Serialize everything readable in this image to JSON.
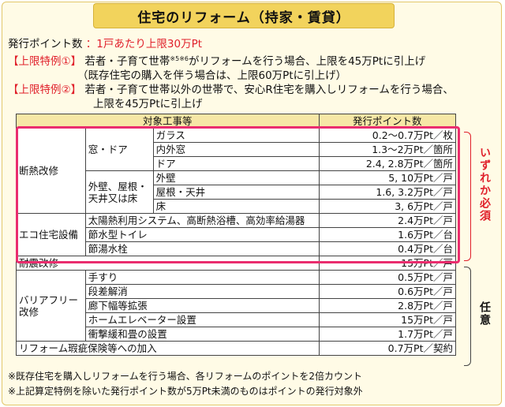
{
  "title": "住宅のリフォーム（持家・賃貸）",
  "points_label": "発行ポイント数",
  "points_value": "：1戸あたり上限30万Pt",
  "special1": {
    "tag": "【上限特例①】",
    "text_a": "若者・子育て世帯",
    "sup": "※5※6",
    "text_b": "がリフォームを行う場合、上限を45万Ptに引上げ",
    "line2": "（既存住宅の購入を伴う場合は、上限60万Ptに引上げ）"
  },
  "special2": {
    "tag": "【上限特例②】",
    "text": "若者・子育て世帯以外の世帯で、安心R住宅を購入しリフォームを行う場合、",
    "line2": "上限を45万Ptに引上げ"
  },
  "table": {
    "header_work": "対象工事等",
    "header_points": "発行ポイント数",
    "insulation": "断熱改修",
    "window_door": "窓・ドア",
    "glass": "ガラス",
    "glass_pt": "0.2～0.7万Pt／枚",
    "inner_window": "内外窓",
    "inner_window_pt": "1.3～2万Pt／箇所",
    "door": "ドア",
    "door_pt": "2.4, 2.8万Pt／箇所",
    "wall_group": "外壁、屋根・天井又は床",
    "wall": "外壁",
    "wall_pt": "5, 10万Pt／戸",
    "roof": "屋根・天井",
    "roof_pt": "1.6, 3.2万Pt／戸",
    "floor": "床",
    "floor_pt": "3, 6万Pt／戸",
    "eco": "エコ住宅設備",
    "solar": "太陽熱利用システム、高断熱浴槽、高効率給湯器",
    "solar_pt": "2.4万Pt／戸",
    "toilet": "節水型トイレ",
    "toilet_pt": "1.6万Pt／台",
    "faucet": "節湯水栓",
    "faucet_pt": "0.4万Pt／台",
    "seismic": "耐震改修",
    "seismic_pt": "15万Pt／戸",
    "barrier": "バリアフリー改修",
    "handrail": "手すり",
    "handrail_pt": "0.5万Pt／戸",
    "step": "段差解消",
    "step_pt": "0.6万Pt／戸",
    "corridor": "廊下幅等拡張",
    "corridor_pt": "2.8万Pt／戸",
    "elevator": "ホームエレベーター設置",
    "elevator_pt": "15万Pt／戸",
    "tatami": "衝撃緩和畳の設置",
    "tatami_pt": "1.7万Pt／戸",
    "insurance": "リフォーム瑕疵保険等への加入",
    "insurance_pt": "0.7万Pt／契約"
  },
  "side_required": "いずれか必須",
  "side_optional": "任意",
  "note1": "※既存住宅を購入しリフォームを行う場合、各リフォームのポイントを2倍カウント",
  "note2": "※上記算定特例を除いた発行ポイント数が5万Pt未満のものはポイントの発行対象外"
}
